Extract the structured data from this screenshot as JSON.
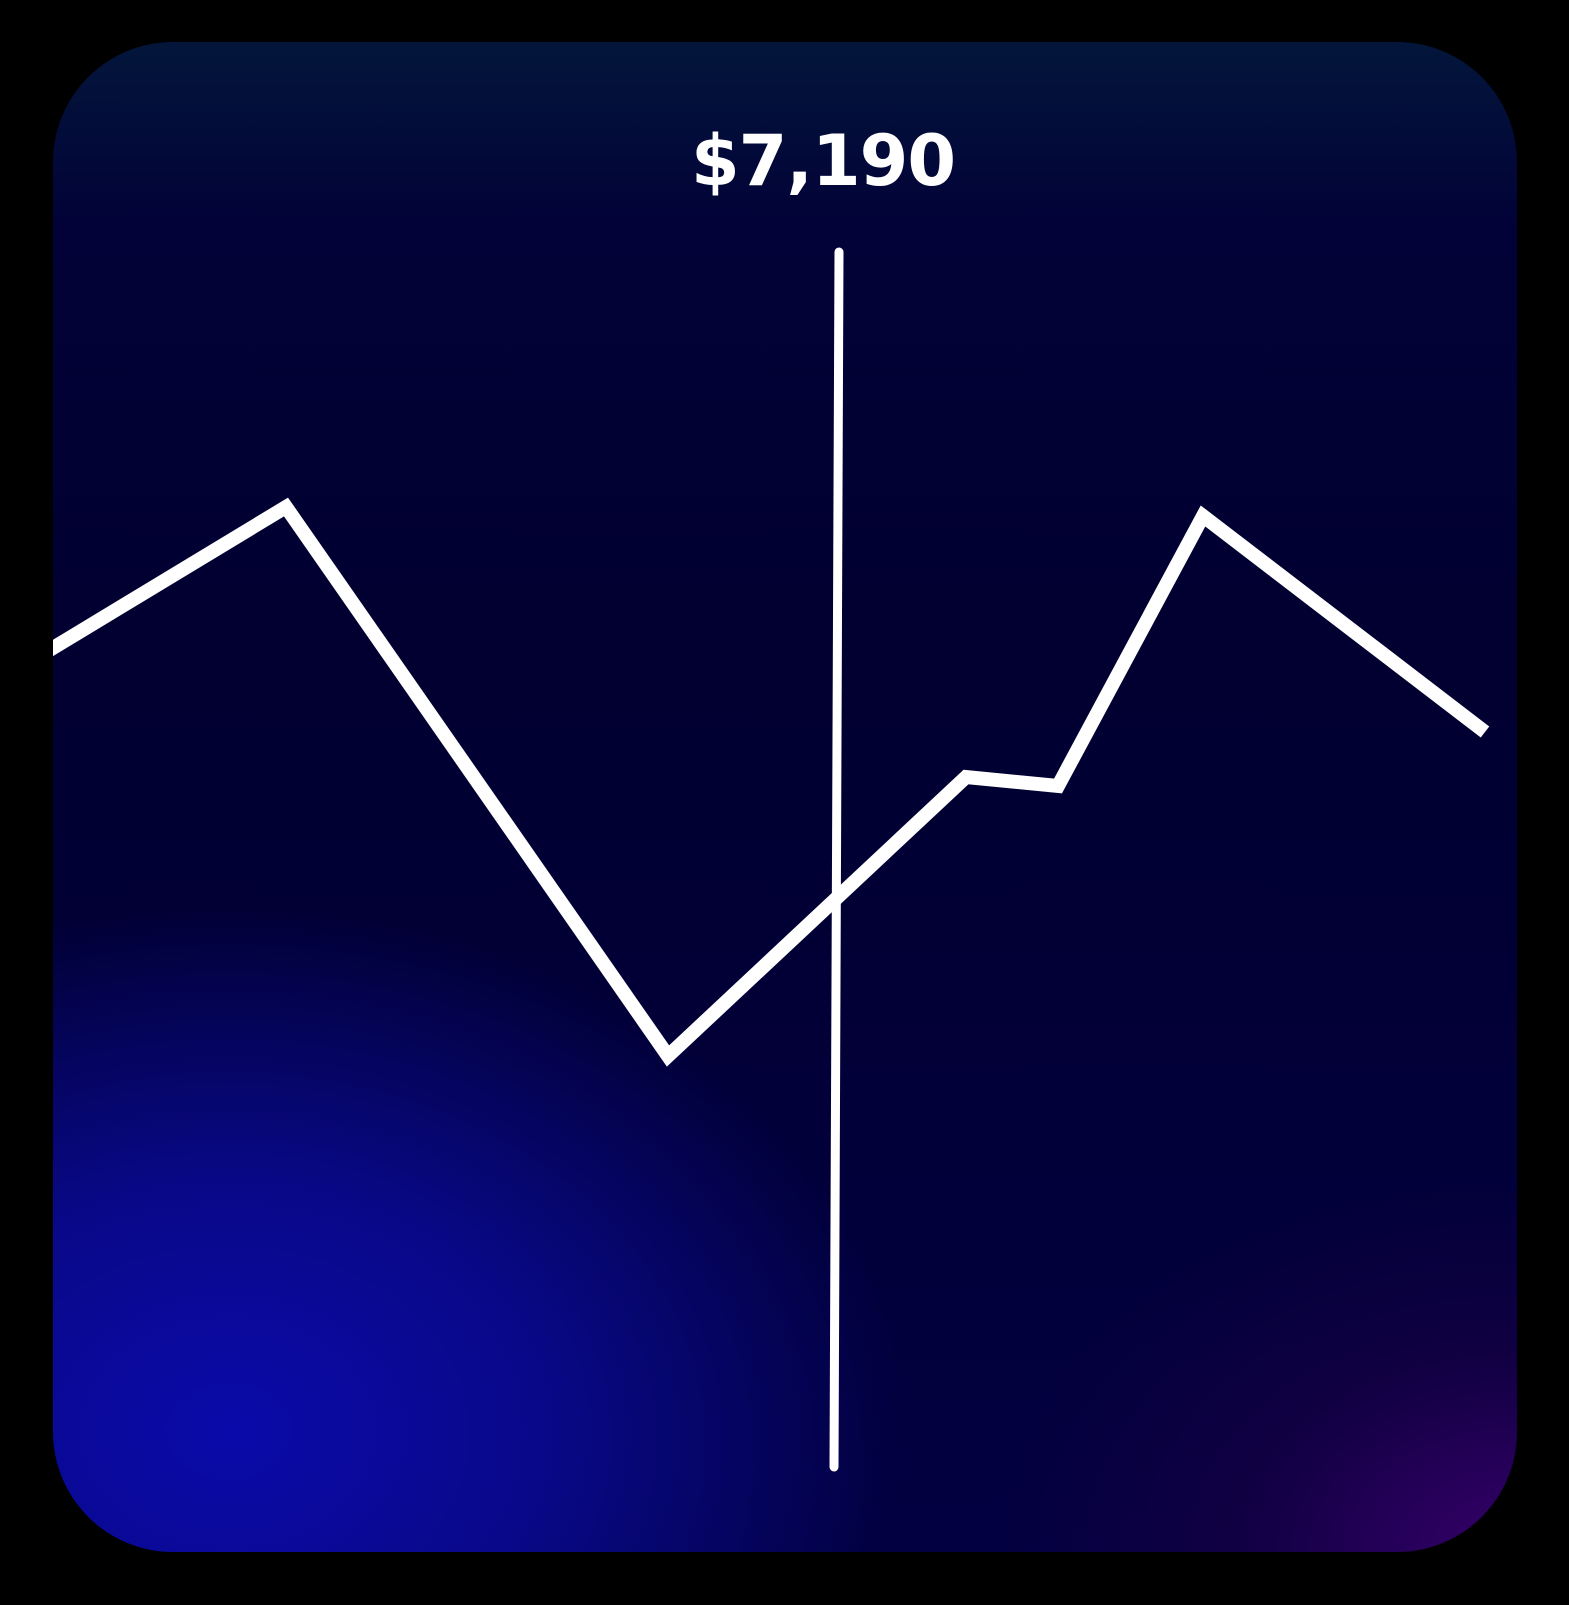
{
  "chart_data": {
    "type": "line",
    "title": "",
    "xlabel": "",
    "ylabel": "",
    "x": [
      0,
      1,
      2,
      3,
      4,
      5,
      6
    ],
    "series": [
      {
        "values": [
          0.28,
          0.6,
          -0.62,
          0.0,
          -0.02,
          0.58,
          0.1
        ]
      }
    ],
    "highlight": {
      "x_index": 2.9,
      "label": "$7,190"
    },
    "grid": false,
    "legend": "none",
    "colors": {
      "line": "#ffffff",
      "cursor": "#ffffff",
      "text": "#ffffff"
    }
  }
}
